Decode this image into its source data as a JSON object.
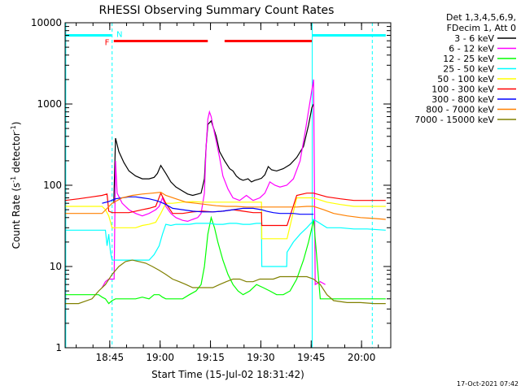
{
  "chart_data": {
    "type": "line",
    "title": "RHESSI Observing Summary Count Rates",
    "xlabel": "Start Time (15-Jul-02 18:31:42)",
    "ylabel": "Count Rate (s",
    "ylabel_sup1": "-1",
    "ylabel_mid": " detector",
    "ylabel_sup2": "-1",
    "ylabel_end": ")",
    "y_scale": "log",
    "ylim": [
      1,
      10000
    ],
    "xlim_minutes": [
      0,
      97
    ],
    "x_ticks": [
      {
        "label": "18:45",
        "t": 13.3
      },
      {
        "label": "19:00",
        "t": 28.3
      },
      {
        "label": "19:15",
        "t": 43.3
      },
      {
        "label": "19:30",
        "t": 58.3
      },
      {
        "label": "19:45",
        "t": 73.3
      },
      {
        "label": "20:00",
        "t": 88.3
      }
    ],
    "y_ticks": [
      {
        "label": "1",
        "v": 1
      },
      {
        "label": "10",
        "v": 10
      },
      {
        "label": "100",
        "v": 100
      },
      {
        "label": "1000",
        "v": 1000
      },
      {
        "label": "10000",
        "v": 10000
      }
    ],
    "legend_header": [
      "Det 1,3,4,5,6,9,",
      "FDecim 1, Att 0"
    ],
    "legend_position": "right",
    "flags": [
      {
        "label": "F",
        "color": "#ff0000"
      },
      {
        "label": "N",
        "color": "#00ffff"
      }
    ],
    "timestamp": "17-Oct-2021 07:42",
    "series": [
      {
        "name": "3 - 6 keV",
        "color": "#000000",
        "x": [
          14.5,
          15.0,
          16.0,
          17.5,
          19.0,
          21.0,
          23.0,
          25.0,
          26.5,
          27.5,
          28.5,
          30.0,
          31.5,
          33.0,
          35.0,
          36.5,
          38.0,
          39.5,
          40.5,
          41.5,
          42.0,
          42.5,
          43.5,
          45.0,
          46.0,
          47.5,
          49.0,
          50.0,
          51.0,
          52.0,
          53.0,
          54.5,
          55.5,
          56.5,
          57.5,
          58.5,
          59.5,
          60.5,
          61.5,
          63.0,
          65.0,
          67.0,
          69.0,
          71.0,
          72.5,
          73.5,
          74.0
        ],
        "y": [
          60,
          380,
          260,
          190,
          150,
          130,
          120,
          120,
          125,
          140,
          175,
          140,
          110,
          95,
          85,
          78,
          75,
          78,
          80,
          120,
          300,
          560,
          620,
          400,
          260,
          200,
          160,
          150,
          130,
          120,
          115,
          120,
          110,
          115,
          118,
          122,
          135,
          170,
          155,
          150,
          160,
          180,
          220,
          300,
          550,
          900,
          1000
        ]
      },
      {
        "name": "6 - 12 keV",
        "color": "#ff00ff",
        "x": [
          11.0,
          12.0,
          13.0,
          14.0,
          14.6,
          15.0,
          15.5,
          17.0,
          19.0,
          21.0,
          23.0,
          25.0,
          27.0,
          28.0,
          29.0,
          30.0,
          31.5,
          33.0,
          35.0,
          36.5,
          38.0,
          39.5,
          40.5,
          41.5,
          42.0,
          42.5,
          43.0,
          43.5,
          44.0,
          45.0,
          46.0,
          47.0,
          48.5,
          50.0,
          52.0,
          54.0,
          56.0,
          58.0,
          59.5,
          61.0,
          62.5,
          64.0,
          66.0,
          68.0,
          70.0,
          71.5,
          73.0,
          74.0,
          74.5,
          76.0,
          77.5
        ],
        "y": [
          5.5,
          6.5,
          7.0,
          7.0,
          7.0,
          200,
          80,
          60,
          50,
          45,
          42,
          45,
          50,
          55,
          70,
          55,
          45,
          40,
          37,
          36,
          38,
          40,
          45,
          80,
          300,
          650,
          800,
          700,
          550,
          350,
          220,
          130,
          90,
          70,
          65,
          75,
          65,
          70,
          80,
          110,
          100,
          95,
          100,
          120,
          200,
          450,
          1100,
          2000,
          6,
          6.5,
          6
        ]
      },
      {
        "name": "12 - 25 keV",
        "color": "#00ff00",
        "x": [
          0,
          4.0,
          8.0,
          10.0,
          11.0,
          12.0,
          13.0,
          14.0,
          15.0,
          16.0,
          17.5,
          19.0,
          21.0,
          23.0,
          25.0,
          26.5,
          28.0,
          29.0,
          30.0,
          31.5,
          33.0,
          35.0,
          37.0,
          39.0,
          40.5,
          41.5,
          42.5,
          43.5,
          44.5,
          45.5,
          47.0,
          48.5,
          50.0,
          51.5,
          53.0,
          55.0,
          57.0,
          59.0,
          61.0,
          63.0,
          65.0,
          67.0,
          69.0,
          71.0,
          72.5,
          73.5,
          74.0,
          76.0,
          80.0,
          84.0,
          88.0,
          92.0,
          95.5
        ],
        "y": [
          4.5,
          4.5,
          4.5,
          4.5,
          4.2,
          4.0,
          3.5,
          3.8,
          4.0,
          4.0,
          4.0,
          4.0,
          4.0,
          4.2,
          4.0,
          4.5,
          4.5,
          4.2,
          4.0,
          4.0,
          4.0,
          4.0,
          4.5,
          5.0,
          6.0,
          10,
          25,
          40,
          30,
          20,
          12,
          8,
          6,
          5,
          4.5,
          5,
          6,
          5.5,
          5,
          4.5,
          4.5,
          5,
          7,
          12,
          20,
          30,
          38,
          4.0,
          4.0,
          4.0,
          4.0,
          4.0,
          4.0
        ]
      },
      {
        "name": "25 - 50 keV",
        "color": "#00ffff",
        "x": [
          0,
          4.0,
          8.0,
          11.0,
          12.0,
          12.5,
          13.0,
          13.5,
          14.0,
          15.0,
          16.0,
          17.5,
          19.0,
          21.0,
          23.0,
          25.0,
          26.5,
          28.0,
          29.0,
          30.0,
          31.5,
          33.0,
          35.0,
          37.0,
          39.0,
          41.0,
          43.0,
          45.0,
          47.0,
          49.0,
          51.0,
          53.0,
          55.0,
          57.0,
          58.5,
          58.6,
          60.0,
          62.0,
          64.0,
          66.0,
          66.1,
          68.0,
          70.0,
          72.0,
          73.5,
          74.0,
          78.0,
          82.0,
          86.0,
          90.0,
          95.5
        ],
        "y": [
          28,
          28,
          28,
          28,
          28,
          18,
          25,
          15,
          12,
          12,
          12,
          12,
          12,
          12,
          12,
          12,
          14,
          18,
          25,
          33,
          32,
          33,
          33,
          33,
          34,
          34,
          34,
          33,
          33,
          34,
          34,
          33,
          33,
          34,
          34,
          10,
          10,
          10,
          10,
          10,
          15,
          20,
          25,
          30,
          35,
          38,
          30,
          30,
          29,
          29,
          28
        ]
      },
      {
        "name": "50 - 100 keV",
        "color": "#ffff00",
        "x": [
          0,
          4.0,
          8.0,
          11.0,
          12.0,
          13.0,
          14.0,
          15.0,
          17.0,
          19.0,
          21.0,
          23.0,
          25.0,
          27.0,
          28.5,
          30.0,
          32.0,
          35.0,
          38.0,
          41.0,
          44.0,
          47.0,
          50.0,
          53.0,
          56.0,
          58.5,
          58.6,
          62.0,
          66.0,
          66.1,
          69.0,
          72.0,
          74.0,
          78.0,
          82.0,
          86.0,
          90.0,
          95.5
        ],
        "y": [
          55,
          55,
          55,
          55,
          50,
          42,
          30,
          30,
          30,
          30,
          30,
          32,
          33,
          35,
          45,
          60,
          60,
          62,
          63,
          62,
          62,
          62,
          62,
          62,
          62,
          62,
          22,
          22,
          22,
          22,
          70,
          70,
          70,
          62,
          58,
          55,
          55,
          55
        ]
      },
      {
        "name": "100 - 300 keV",
        "color": "#ff0000",
        "x": [
          0,
          4.0,
          8.0,
          11.0,
          12.5,
          13.0,
          14.0,
          15.0,
          17.0,
          19.0,
          21.0,
          23.0,
          25.0,
          27.0,
          28.5,
          30.0,
          32.0,
          35.0,
          38.0,
          41.0,
          44.0,
          47.0,
          50.0,
          53.0,
          56.0,
          58.5,
          58.6,
          62.0,
          66.0,
          66.1,
          69.0,
          72.0,
          74.0,
          78.0,
          82.0,
          86.0,
          90.0,
          95.5
        ],
        "y": [
          65,
          68,
          72,
          75,
          78,
          48,
          46,
          46,
          46,
          46,
          48,
          50,
          52,
          55,
          80,
          60,
          45,
          45,
          47,
          48,
          47,
          48,
          50,
          48,
          46,
          46,
          32,
          32,
          32,
          32,
          75,
          80,
          80,
          72,
          68,
          65,
          65,
          65
        ]
      },
      {
        "name": "300 - 800 keV",
        "color": "#0000ff",
        "x": [
          11.0,
          13.0,
          15.0,
          17.0,
          19.0,
          21.0,
          23.0,
          25.0,
          27.0,
          28.5,
          30.0,
          32.0,
          35.0,
          38.0,
          41.0,
          44.0,
          47.0,
          50.0,
          53.0,
          56.0,
          58.5,
          60.0,
          62.0,
          64.0,
          66.0,
          68.0,
          70.0,
          72.0,
          74.0
        ],
        "y": [
          60,
          63,
          68,
          70,
          72,
          72,
          70,
          68,
          65,
          62,
          58,
          52,
          50,
          48,
          47,
          47,
          48,
          50,
          52,
          52,
          50,
          48,
          46,
          45,
          45,
          45,
          44,
          44,
          44
        ]
      },
      {
        "name": "800 - 7000 keV",
        "color": "#ff8000",
        "x": [
          0,
          4.0,
          8.0,
          11.0,
          14.0,
          17.0,
          20.0,
          23.0,
          26.0,
          28.5,
          30.0,
          33.0,
          36.0,
          39.0,
          42.0,
          45.0,
          48.0,
          51.0,
          54.0,
          57.0,
          60.0,
          63.0,
          66.0,
          69.0,
          72.0,
          74.0,
          77.0,
          80.0,
          84.0,
          88.0,
          92.0,
          95.5
        ],
        "y": [
          45,
          45,
          45,
          45,
          60,
          70,
          75,
          78,
          80,
          82,
          75,
          68,
          62,
          60,
          58,
          56,
          55,
          55,
          54,
          54,
          54,
          54,
          54,
          54,
          55,
          55,
          50,
          45,
          42,
          40,
          39,
          38
        ]
      },
      {
        "name": "7000 - 15000 keV",
        "color": "#808000",
        "x": [
          0,
          4.0,
          8.0,
          10.0,
          12.0,
          14.0,
          16.0,
          18.0,
          20.0,
          22.0,
          24.0,
          26.0,
          28.0,
          30.0,
          32.0,
          34.0,
          36.0,
          38.0,
          40.0,
          42.0,
          44.0,
          46.0,
          48.0,
          50.0,
          52.0,
          54.0,
          56.0,
          58.0,
          60.0,
          62.0,
          64.0,
          66.0,
          68.0,
          70.0,
          72.0,
          74.0,
          76.0,
          78.0,
          80.0,
          84.0,
          88.0,
          92.0,
          95.5
        ],
        "y": [
          3.5,
          3.5,
          4.0,
          5.0,
          6.0,
          8.0,
          10.0,
          11.5,
          12.0,
          11.5,
          11.0,
          10.0,
          9.0,
          8.0,
          7.0,
          6.5,
          6.0,
          5.5,
          5.5,
          5.5,
          5.5,
          6.0,
          6.5,
          7.0,
          7.0,
          6.5,
          6.5,
          7.0,
          7.0,
          7.0,
          7.5,
          7.5,
          7.5,
          7.5,
          7.5,
          7.0,
          6.0,
          4.5,
          3.8,
          3.6,
          3.6,
          3.5,
          3.5
        ]
      }
    ],
    "attenuator_bar": {
      "color": "#ff0000",
      "segments": [
        [
          14.5,
          42.5
        ],
        [
          47.5,
          73.5
        ]
      ],
      "level": 7000
    },
    "night_bar": {
      "color": "#00ffff",
      "segments": [
        [
          0,
          13.8
        ],
        [
          73.5,
          95.5
        ]
      ],
      "level": 7000
    },
    "night_lines": {
      "color": "#00ffff",
      "solid": [
        0.2,
        73.6
      ],
      "dashed": [
        14.0,
        91.5
      ]
    }
  }
}
